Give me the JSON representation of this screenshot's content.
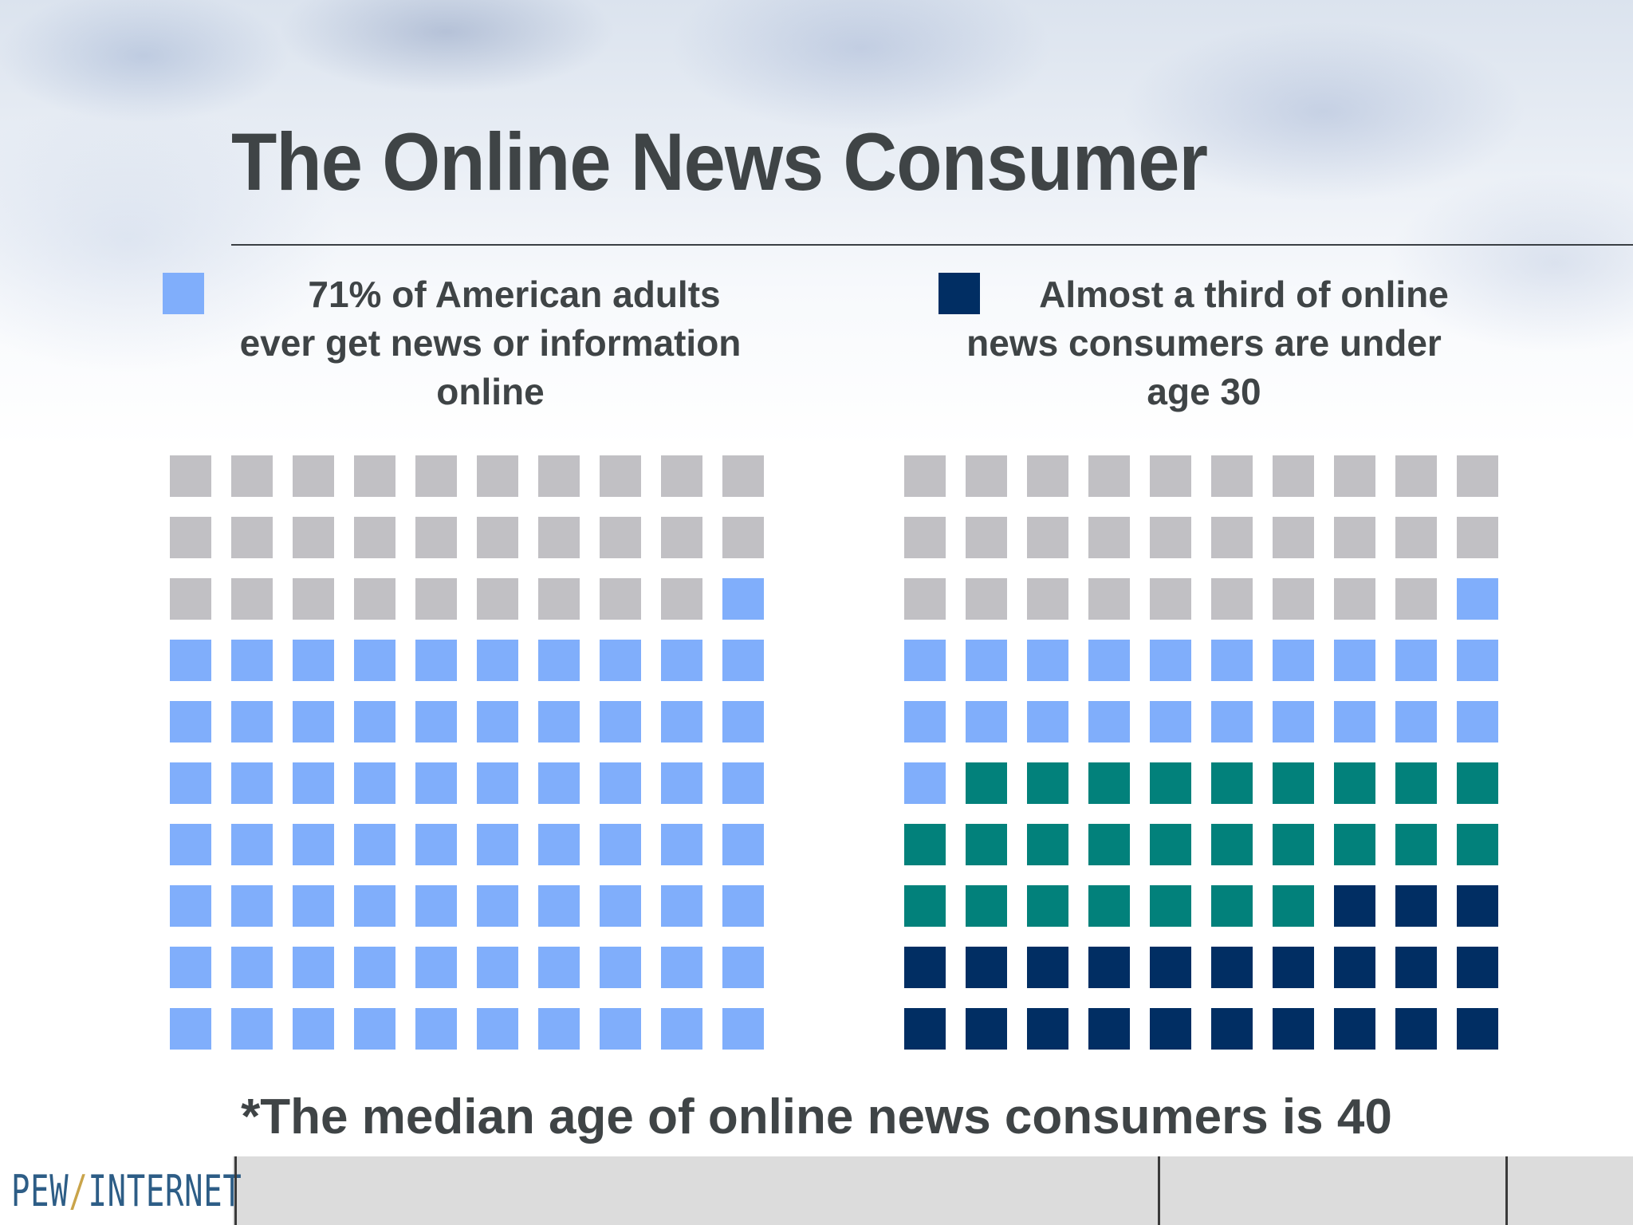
{
  "slide": {
    "title": "The Online News Consumer",
    "footnote": "*The median age of online news consumers is 40",
    "logo": {
      "left": "PEW",
      "separator": "/",
      "right": "INTERNET"
    }
  },
  "colors": {
    "text": "#3f4446",
    "gray": "#c1c0c4",
    "light_blue": "#80aefb",
    "teal": "#02817b",
    "navy": "#012e63"
  },
  "chart_data": [
    {
      "type": "waffle",
      "grid": {
        "rows": 10,
        "cols": 10,
        "fill_order": "bottom-to-top"
      },
      "legend": {
        "color": "#80aefb",
        "lines": [
          "71% of American adults",
          "ever get news or information",
          "online"
        ]
      },
      "segments": [
        {
          "color": "#80aefb",
          "count": 71
        },
        {
          "color": "#c1c0c4",
          "count": 29
        }
      ]
    },
    {
      "type": "waffle",
      "grid": {
        "rows": 10,
        "cols": 10,
        "fill_order": "bottom-to-top"
      },
      "legend": {
        "color": "#012e63",
        "lines": [
          "Almost a third of online",
          "news consumers are under",
          "age 30"
        ]
      },
      "segments": [
        {
          "color": "#012e63",
          "count": 23
        },
        {
          "color": "#02817b",
          "count": 26
        },
        {
          "color": "#80aefb",
          "count": 22
        },
        {
          "color": "#c1c0c4",
          "count": 29
        }
      ]
    }
  ]
}
